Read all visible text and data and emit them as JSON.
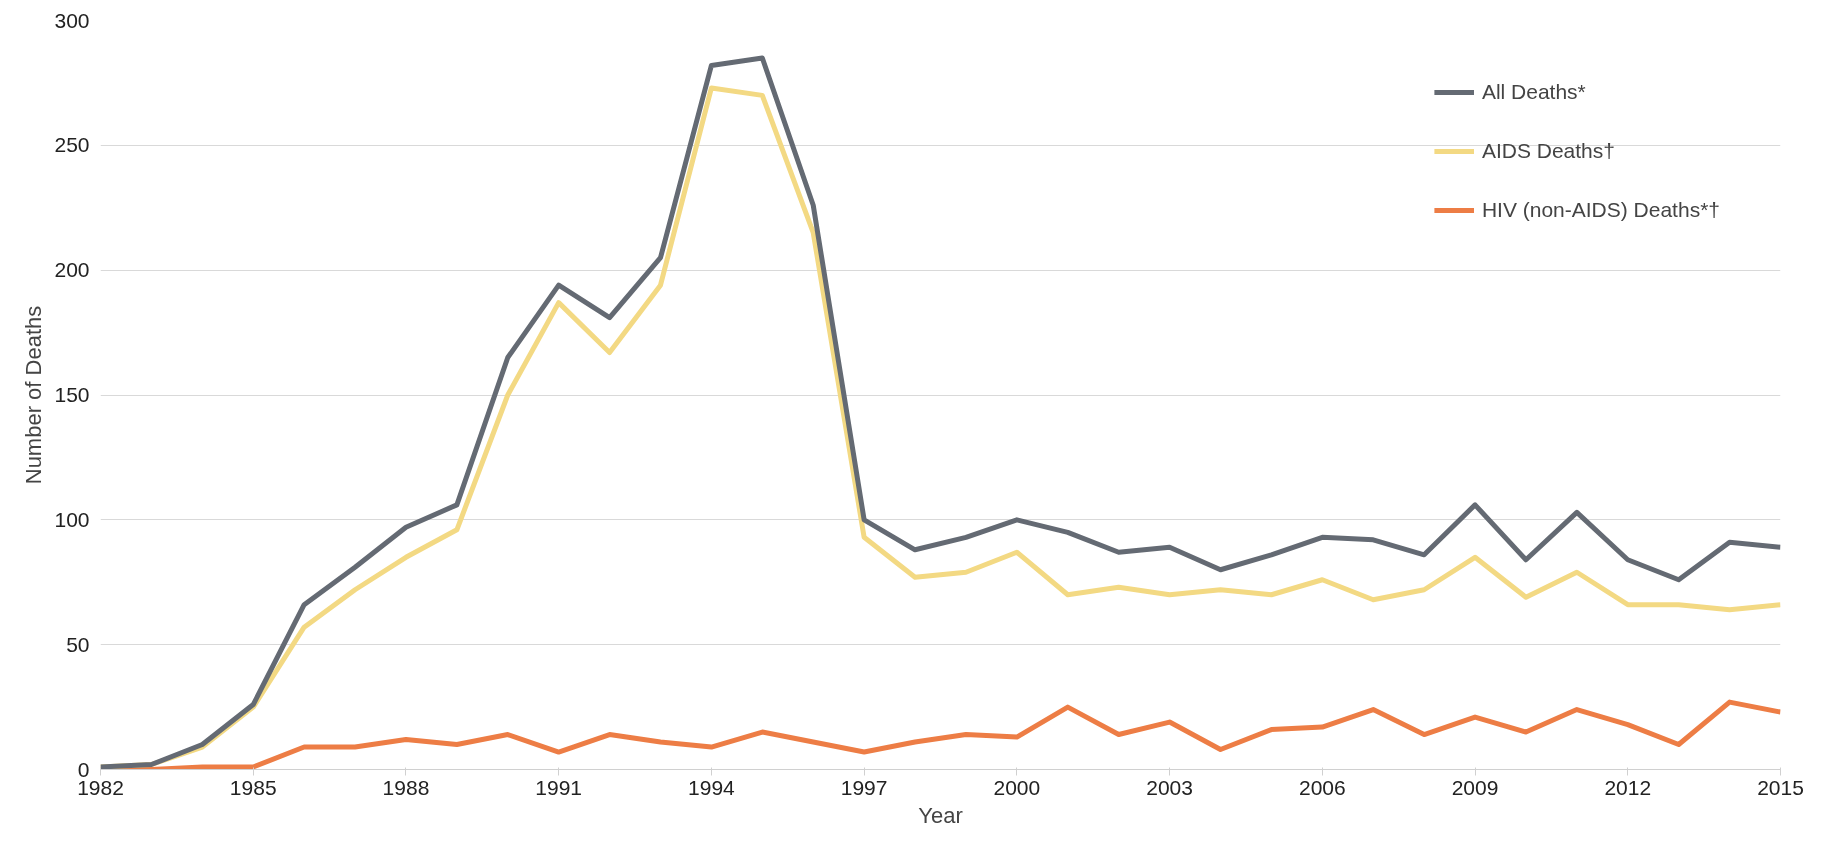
{
  "chart_data": {
    "type": "line",
    "xlabel": "Year",
    "ylabel": "Number of Deaths",
    "x": [
      1982,
      1983,
      1984,
      1985,
      1986,
      1987,
      1988,
      1989,
      1990,
      1991,
      1992,
      1993,
      1994,
      1995,
      1996,
      1997,
      1998,
      1999,
      2000,
      2001,
      2002,
      2003,
      2004,
      2005,
      2006,
      2007,
      2008,
      2009,
      2010,
      2011,
      2012,
      2013,
      2014,
      2015
    ],
    "series": [
      {
        "name": "All Deaths*",
        "color": "#646a73",
        "values": [
          1,
          2,
          10,
          26,
          66,
          81,
          97,
          106,
          165,
          194,
          181,
          205,
          282,
          285,
          226,
          100,
          88,
          93,
          100,
          95,
          87,
          89,
          80,
          86,
          93,
          92,
          86,
          106,
          84,
          103,
          84,
          76,
          91,
          89
        ]
      },
      {
        "name": "AIDS Deaths†",
        "color": "#f3d983",
        "values": [
          1,
          2,
          9,
          25,
          57,
          72,
          85,
          96,
          150,
          187,
          167,
          194,
          273,
          270,
          215,
          93,
          77,
          79,
          87,
          70,
          73,
          70,
          72,
          70,
          76,
          68,
          72,
          85,
          69,
          79,
          66,
          66,
          64,
          66
        ]
      },
      {
        "name": "HIV (non-AIDS) Deaths*†",
        "color": "#ed7d45",
        "values": [
          0,
          0,
          1,
          1,
          9,
          9,
          12,
          10,
          14,
          7,
          14,
          11,
          9,
          15,
          11,
          7,
          11,
          14,
          13,
          25,
          14,
          19,
          8,
          16,
          17,
          24,
          14,
          21,
          15,
          24,
          18,
          10,
          27,
          23
        ]
      }
    ],
    "xlim": [
      1982,
      2015
    ],
    "xticks": [
      1982,
      1985,
      1988,
      1991,
      1994,
      1997,
      2000,
      2003,
      2006,
      2009,
      2012,
      2015
    ],
    "ylim": [
      0,
      300
    ],
    "yticks": [
      0,
      50,
      100,
      150,
      200,
      250,
      300
    ],
    "grid": "y",
    "legend": "top right",
    "marker": "none",
    "line_style": "solid"
  }
}
